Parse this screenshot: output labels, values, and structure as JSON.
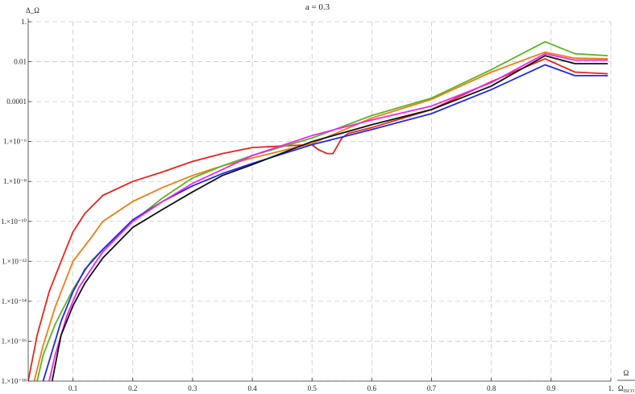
{
  "chart_data": {
    "type": "line",
    "title": "a = 0.3",
    "ylabel": "Δ_Ω",
    "xlabel": "Ω / Ω_ISCO",
    "x_scale": "linear",
    "y_scale": "log",
    "xlim": [
      0.025,
      1.0
    ],
    "ylim": [
      1e-18,
      1.0
    ],
    "grid": true,
    "legend": "none",
    "x_ticks": [
      {
        "value": 0.1,
        "label": "0.1"
      },
      {
        "value": 0.2,
        "label": "0.2"
      },
      {
        "value": 0.3,
        "label": "0.3"
      },
      {
        "value": 0.4,
        "label": "0.4"
      },
      {
        "value": 0.5,
        "label": "0.5"
      },
      {
        "value": 0.6,
        "label": "0.6"
      },
      {
        "value": 0.7,
        "label": "0.7"
      },
      {
        "value": 0.8,
        "label": "0.8"
      },
      {
        "value": 0.9,
        "label": "0.9"
      },
      {
        "value": 1.0,
        "label": "1."
      }
    ],
    "y_ticks": [
      {
        "value": 1.0,
        "label": "1."
      },
      {
        "value": 0.01,
        "label": "0.01"
      },
      {
        "value": 0.0001,
        "label": "0.0001"
      },
      {
        "value": 1e-06,
        "label": "1.×10⁻⁶"
      },
      {
        "value": 1e-08,
        "label": "1.×10⁻⁸"
      },
      {
        "value": 1e-10,
        "label": "1.×10⁻¹⁰"
      },
      {
        "value": 1e-12,
        "label": "1.×10⁻¹²"
      },
      {
        "value": 1e-14,
        "label": "1.×10⁻¹⁴"
      },
      {
        "value": 1e-16,
        "label": "1.×10⁻¹⁶"
      },
      {
        "value": 1e-18,
        "label": "1.×10⁻¹⁸"
      }
    ],
    "series": [
      {
        "color": "#e8241c",
        "x": [
          0.025,
          0.04,
          0.06,
          0.08,
          0.1,
          0.12,
          0.15,
          0.2,
          0.25,
          0.3,
          0.35,
          0.4,
          0.45,
          0.5,
          0.51,
          0.525,
          0.535,
          0.55,
          0.56,
          0.6,
          0.7,
          0.8,
          0.89,
          0.94,
          0.995
        ],
        "y": [
          1e-18,
          2e-16,
          3e-14,
          1e-12,
          3e-11,
          2.5e-10,
          2e-09,
          1e-08,
          3e-08,
          1e-07,
          2.5e-07,
          5e-07,
          6e-07,
          7e-07,
          4e-07,
          2.5e-07,
          2.5e-07,
          1.5e-06,
          2.5e-06,
          5e-06,
          4e-05,
          0.001,
          0.014,
          0.003,
          0.0025
        ]
      },
      {
        "color": "#f07b14",
        "x": [
          0.035,
          0.05,
          0.07,
          0.1,
          0.13,
          0.15,
          0.2,
          0.25,
          0.3,
          0.35,
          0.4,
          0.5,
          0.6,
          0.7,
          0.8,
          0.89,
          0.94,
          0.995
        ],
        "y": [
          1e-18,
          6e-17,
          5e-15,
          1e-12,
          1.5e-11,
          1e-10,
          1e-09,
          5e-09,
          2e-08,
          6e-08,
          1.5e-07,
          8e-07,
          1.5e-05,
          0.00013,
          0.003,
          0.03,
          0.015,
          0.014
        ]
      },
      {
        "color": "#5bb41e",
        "x": [
          0.04,
          0.05,
          0.07,
          0.1,
          0.13,
          0.15,
          0.2,
          0.25,
          0.3,
          0.35,
          0.4,
          0.5,
          0.6,
          0.7,
          0.8,
          0.89,
          0.94,
          0.995
        ],
        "y": [
          1e-18,
          2e-17,
          7e-16,
          4e-14,
          1e-12,
          4e-12,
          1e-10,
          1.5e-09,
          1.5e-08,
          6e-08,
          2e-07,
          1.5e-06,
          2e-05,
          0.00015,
          0.004,
          0.1,
          0.025,
          0.02
        ]
      },
      {
        "color": "#2228e6",
        "x": [
          0.05,
          0.06,
          0.08,
          0.1,
          0.12,
          0.15,
          0.2,
          0.25,
          0.3,
          0.35,
          0.4,
          0.5,
          0.6,
          0.7,
          0.8,
          0.89,
          0.94,
          0.995
        ],
        "y": [
          1e-18,
          1e-17,
          1e-15,
          3e-14,
          4e-13,
          4e-12,
          1.2e-10,
          1e-09,
          6e-09,
          2.5e-08,
          8e-08,
          7e-07,
          4e-06,
          2.5e-05,
          0.0004,
          0.007,
          0.002,
          0.002
        ]
      },
      {
        "color": "#f024f0",
        "x": [
          0.06,
          0.07,
          0.09,
          0.11,
          0.13,
          0.15,
          0.2,
          0.25,
          0.3,
          0.35,
          0.4,
          0.5,
          0.6,
          0.7,
          0.8,
          0.89,
          0.94,
          0.995
        ],
        "y": [
          1e-18,
          2e-17,
          2e-15,
          5e-14,
          4e-13,
          3e-12,
          1e-10,
          1e-09,
          8e-09,
          4e-08,
          2e-07,
          2e-06,
          1.2e-05,
          6e-05,
          0.0009,
          0.025,
          0.012,
          0.012
        ]
      },
      {
        "color": "#111111",
        "x": [
          0.065,
          0.08,
          0.1,
          0.12,
          0.15,
          0.2,
          0.25,
          0.3,
          0.35,
          0.4,
          0.5,
          0.6,
          0.7,
          0.8,
          0.89,
          0.94,
          0.995
        ],
        "y": [
          1e-18,
          2e-16,
          6e-15,
          8e-14,
          1.5e-12,
          5e-11,
          4e-10,
          3e-09,
          2e-08,
          7e-08,
          1e-06,
          7e-06,
          4e-05,
          0.0006,
          0.02,
          0.008,
          0.008
        ]
      }
    ]
  }
}
